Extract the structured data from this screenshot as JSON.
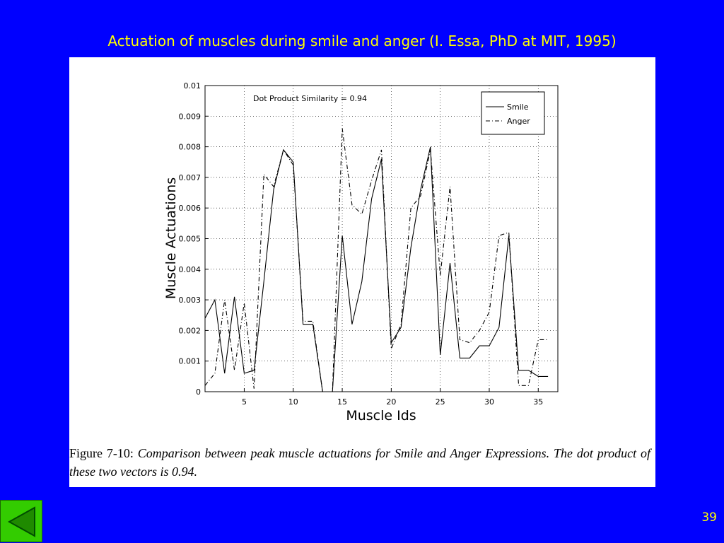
{
  "slide": {
    "title": "Actuation of muscles during smile and anger (I. Essa, PhD at MIT, 1995)",
    "page_number": "39",
    "nav": {
      "back_icon": "left-triangle-icon"
    },
    "colors": {
      "background": "#0000ff",
      "title": "#ffff00",
      "nav_button": "#33cc00"
    }
  },
  "caption": {
    "lead": "Figure 7-10:",
    "text": "Comparison between peak muscle actuations for Smile and Anger Expressions.  The dot product of these two vectors is 0.94."
  },
  "chart_data": {
    "type": "line",
    "xlabel": "Muscle Ids",
    "ylabel": "Muscle Actuations",
    "annotation": "Dot Product Similarity = 0.94",
    "xlim": [
      1,
      37
    ],
    "ylim": [
      0,
      0.01
    ],
    "xticks": [
      5,
      10,
      15,
      20,
      25,
      30,
      35
    ],
    "yticks": [
      0,
      0.001,
      0.002,
      0.003,
      0.004,
      0.005,
      0.006,
      0.007,
      0.008,
      0.009,
      0.01
    ],
    "ytick_labels": [
      "0",
      "0.001",
      "0.002",
      "0.003",
      "0.004",
      "0.005",
      "0.006",
      "0.007",
      "0.008",
      "0.009",
      "0.01"
    ],
    "grid": true,
    "legend_position": "top-right",
    "x": [
      1,
      2,
      3,
      4,
      5,
      6,
      7,
      8,
      9,
      10,
      11,
      12,
      13,
      14,
      15,
      16,
      17,
      18,
      19,
      20,
      21,
      22,
      23,
      24,
      25,
      26,
      27,
      28,
      29,
      30,
      31,
      32,
      33,
      34,
      35,
      36
    ],
    "series": [
      {
        "name": "Smile",
        "style": "solid",
        "values": [
          0.0024,
          0.003,
          0.0006,
          0.0031,
          0.0006,
          0.0007,
          0.0036,
          0.0066,
          0.0079,
          0.0075,
          0.0022,
          0.0022,
          0.0,
          0.0,
          0.0051,
          0.0022,
          0.0036,
          0.0063,
          0.0076,
          0.0016,
          0.0021,
          0.0047,
          0.0066,
          0.008,
          0.0012,
          0.0042,
          0.0011,
          0.0011,
          0.0015,
          0.0015,
          0.0021,
          0.0051,
          0.0007,
          0.0007,
          0.0005,
          0.0005
        ]
      },
      {
        "name": "Anger",
        "style": "dash-dot",
        "values": [
          0.0002,
          0.0006,
          0.003,
          0.0007,
          0.0029,
          0.0001,
          0.0071,
          0.0067,
          0.0079,
          0.0074,
          0.0023,
          0.0023,
          0.0,
          0.0,
          0.0086,
          0.0061,
          0.0058,
          0.0069,
          0.0079,
          0.0014,
          0.0022,
          0.006,
          0.0064,
          0.0079,
          0.0038,
          0.0067,
          0.0017,
          0.0016,
          0.002,
          0.0026,
          0.0051,
          0.0052,
          0.0002,
          0.0002,
          0.0017,
          0.0017
        ]
      }
    ]
  }
}
